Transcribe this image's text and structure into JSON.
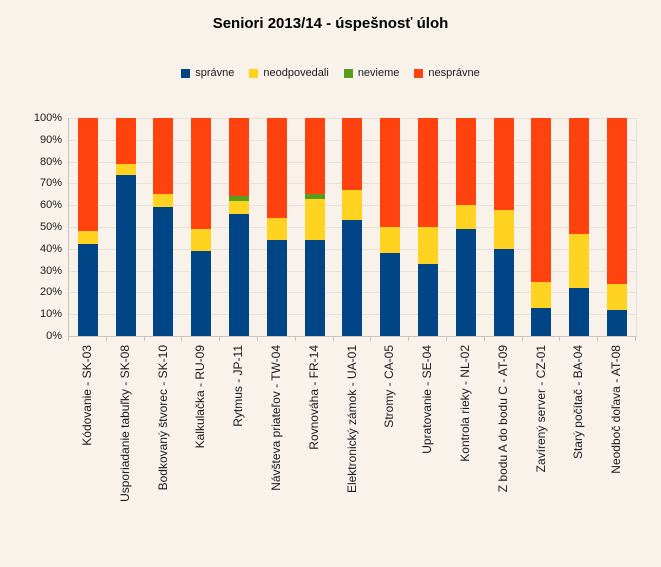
{
  "colors": {
    "background": "#f8f2eb",
    "gridline": "#e7e1da",
    "axis": "#c9c3bb",
    "text": "#1a1a1a",
    "title": "#000000"
  },
  "chart_data": {
    "type": "bar",
    "stacked": true,
    "orientation": "vertical",
    "title": "Seniori 2013/14 - úspešnosť úloh",
    "legend_position": "top",
    "grid": true,
    "ylim": [
      0,
      100
    ],
    "y_ticks": [
      "0%",
      "10%",
      "20%",
      "30%",
      "40%",
      "50%",
      "60%",
      "70%",
      "80%",
      "90%",
      "100%"
    ],
    "xlabel": "",
    "ylabel": "",
    "categories": [
      "Kódovanie - SK-03",
      "Usporiadanie tabuľky - SK-08",
      "Bodkovaný štvorec - SK-10",
      "Kalkulačka - RU-09",
      "Rytmus - JP-11",
      "Návšteva priateľov - TW-04",
      "Rovnováha - FR-14",
      "Elektronický zámok - UA-01",
      "Stromy - CA-05",
      "Upratovanie - SE-04",
      "Kontrola rieky - NL-02",
      "Z bodu A do bodu C - AT-09",
      "Zavírený server - CZ-01",
      "Starý počítač - BA-04",
      "Neodboč doľava - AT-08"
    ],
    "series": [
      {
        "name": "správne",
        "color": "#004586",
        "values": [
          42,
          74,
          59,
          39,
          56,
          44,
          44,
          53,
          38,
          33,
          49,
          40,
          13,
          22,
          12
        ]
      },
      {
        "name": "neodpovedali",
        "color": "#ffd320",
        "values": [
          6,
          5,
          6,
          10,
          6,
          10,
          19,
          14,
          12,
          17,
          11,
          18,
          12,
          25,
          12
        ]
      },
      {
        "name": "nevieme",
        "color": "#579d1c",
        "values": [
          0,
          0,
          0,
          0,
          2,
          0,
          2,
          0,
          0,
          0,
          0,
          0,
          0,
          0,
          0
        ]
      },
      {
        "name": "nesprávne",
        "color": "#ff420e",
        "values": [
          52,
          21,
          35,
          51,
          36,
          46,
          35,
          33,
          50,
          50,
          40,
          42,
          75,
          53,
          76
        ]
      }
    ]
  }
}
